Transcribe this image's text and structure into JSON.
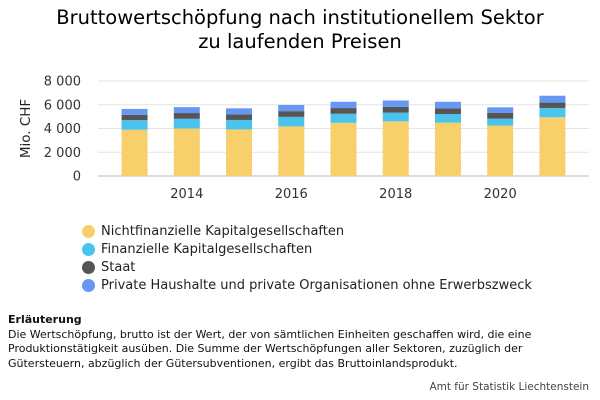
{
  "chart_data": {
    "type": "bar",
    "stacked": true,
    "title_lines": [
      "Bruttowertschöpfung nach institutionellem Sektor",
      "zu laufenden Preisen"
    ],
    "ylabel": "Mio. CHF",
    "xlabel": "",
    "ylim": [
      0,
      8000
    ],
    "yticks": [
      0,
      2000,
      4000,
      6000,
      8000
    ],
    "ytick_labels": [
      "0",
      "2 000",
      "4 000",
      "6 000",
      "8 000"
    ],
    "xlim": [
      2012.3,
      2021.7
    ],
    "xticks": [
      2014,
      2016,
      2018,
      2020
    ],
    "xtick_labels": [
      "2014",
      "2016",
      "2018",
      "2020"
    ],
    "grid": "horizontal",
    "legend_position": "bottom",
    "categories": [
      2013,
      2014,
      2015,
      2016,
      2017,
      2018,
      2019,
      2020,
      2021
    ],
    "series": [
      {
        "name": "Nichtfinanzielle Kapitalgesellschaften",
        "color": "#f7d06c",
        "values": [
          3900,
          4000,
          3920,
          4180,
          4480,
          4600,
          4500,
          4250,
          4950
        ]
      },
      {
        "name": "Finanzielle Kapitalgesellschaften",
        "color": "#4ac4ec",
        "values": [
          800,
          820,
          800,
          800,
          760,
          740,
          720,
          580,
          780
        ]
      },
      {
        "name": "Staat",
        "color": "#555555",
        "values": [
          450,
          480,
          470,
          480,
          480,
          480,
          480,
          500,
          450
        ]
      },
      {
        "name": "Private Haushalte und private Organisationen ohne Erwerbszweck",
        "color": "#6697f2",
        "values": [
          500,
          500,
          510,
          520,
          530,
          540,
          550,
          450,
          580
        ]
      }
    ]
  },
  "note": {
    "heading": "Erläuterung",
    "text": "Die Wertschöpfung, brutto ist der Wert, der von sämtlichen Einheiten geschaffen wird, die eine Produktionstätigkeit ausüben. Die Summe der Wertschöpfungen aller Sektoren, zuzüglich der Gütersteuern, abzüglich der Gütersubventionen, ergibt das Bruttoinlandsprodukt."
  },
  "source": "Amt für Statistik Liechtenstein"
}
